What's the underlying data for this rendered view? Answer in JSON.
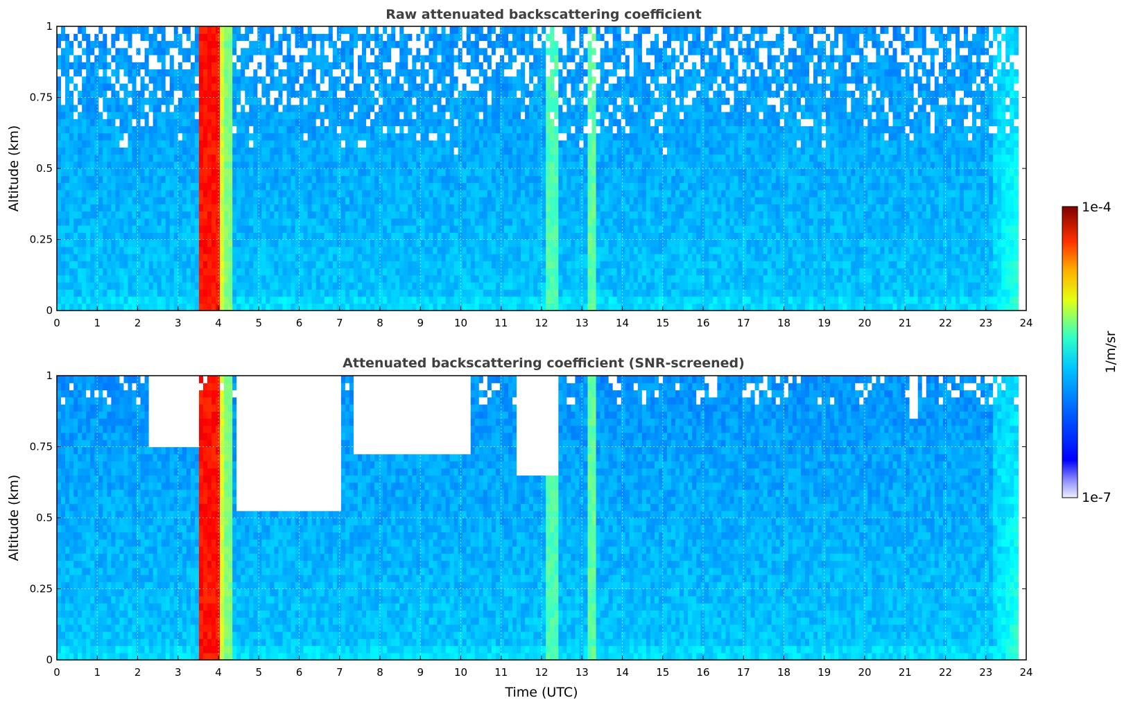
{
  "chart_data": [
    {
      "type": "heatmap",
      "title": "Raw attenuated backscattering coefficient",
      "xlabel": "",
      "ylabel": "Altitude (km)",
      "xlim": [
        0,
        24
      ],
      "ylim": [
        0,
        1
      ],
      "x_ticks": [
        "0",
        "1",
        "2",
        "3",
        "4",
        "5",
        "6",
        "7",
        "8",
        "9",
        "10",
        "11",
        "12",
        "13",
        "14",
        "15",
        "16",
        "17",
        "18",
        "19",
        "20",
        "21",
        "22",
        "23",
        "24"
      ],
      "y_ticks": [
        "0",
        "0.25",
        "0.5",
        "0.75",
        "1"
      ],
      "grid": true,
      "data_extent_x": [
        0,
        23.8
      ],
      "features": [
        {
          "x_range": [
            3.55,
            4.35
          ],
          "y_range": [
            0,
            1
          ],
          "level": "high",
          "note": "strong scattering column"
        },
        {
          "x_range": [
            12.1,
            12.4
          ],
          "y_range": [
            0,
            1
          ],
          "level": "medium"
        },
        {
          "x_range": [
            13.1,
            13.35
          ],
          "y_range": [
            0,
            1
          ],
          "level": "medium"
        },
        {
          "x_range": [
            0,
            23.8
          ],
          "y_range": [
            0,
            0.05
          ],
          "level": "medium-low",
          "note": "near-surface layer"
        },
        {
          "x_range": [
            0,
            23.8
          ],
          "y_range": [
            0.6,
            1
          ],
          "level": "noisy",
          "note": "noise at altitude"
        }
      ]
    },
    {
      "type": "heatmap",
      "title": "Attenuated backscattering coefficient (SNR-screened)",
      "xlabel": "Time (UTC)",
      "ylabel": "Altitude (km)",
      "xlim": [
        0,
        24
      ],
      "ylim": [
        0,
        1
      ],
      "x_ticks": [
        "0",
        "1",
        "2",
        "3",
        "4",
        "5",
        "6",
        "7",
        "8",
        "9",
        "10",
        "11",
        "12",
        "13",
        "14",
        "15",
        "16",
        "17",
        "18",
        "19",
        "20",
        "21",
        "22",
        "23",
        "24"
      ],
      "y_ticks": [
        "0",
        "0.25",
        "0.5",
        "0.75",
        "1"
      ],
      "grid": true,
      "data_extent_x": [
        0,
        23.8
      ],
      "screened_regions": [
        {
          "x_range": [
            2.3,
            3.5
          ],
          "bottom_altitude": 0.76
        },
        {
          "x_range": [
            4.45,
            7.0
          ],
          "bottom_altitude": 0.53
        },
        {
          "x_range": [
            7.3,
            10.2
          ],
          "bottom_altitude": 0.72
        },
        {
          "x_range": [
            11.4,
            12.4
          ],
          "bottom_altitude": 0.66
        },
        {
          "x_range": [
            21.1,
            21.3
          ],
          "bottom_altitude": 0.84
        }
      ]
    }
  ],
  "colorbar": {
    "label": "1/m/sr",
    "max_label": "1e-4",
    "min_label": "1e-7",
    "colormap": "jet"
  }
}
